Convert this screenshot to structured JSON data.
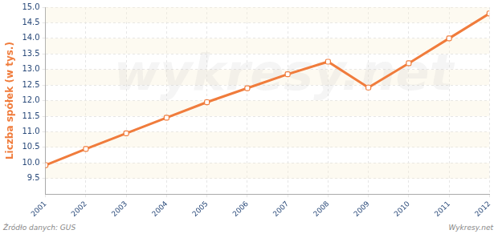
{
  "chart_data": {
    "type": "line",
    "y_label": "Liczba spółek (w tys.)",
    "categories": [
      "2001",
      "2002",
      "2003",
      "2004",
      "2005",
      "2006",
      "2007",
      "2008",
      "2009",
      "2010",
      "2011",
      "2012"
    ],
    "values": [
      9.93,
      10.45,
      10.95,
      11.45,
      11.95,
      12.4,
      12.85,
      13.25,
      12.42,
      13.2,
      14.0,
      14.8
    ],
    "color": "#f07c3c",
    "marker": "square",
    "ylim": [
      9.0,
      15.0
    ],
    "yticks": [
      9.5,
      {
        "value": 10,
        "label": "10.0"
      },
      10.5,
      {
        "value": 11,
        "label": "11.0"
      },
      11.5,
      {
        "value": 12,
        "label": "12.0"
      },
      12.5,
      {
        "value": 13,
        "label": "13.0"
      },
      13.5,
      {
        "value": 14,
        "label": "14.0"
      },
      14.5,
      {
        "value": 15,
        "label": "15.0"
      }
    ],
    "grid": true,
    "annotations": [
      "Źródło danych:  GUS",
      "Wykresy.net",
      "wykresy.net"
    ]
  }
}
